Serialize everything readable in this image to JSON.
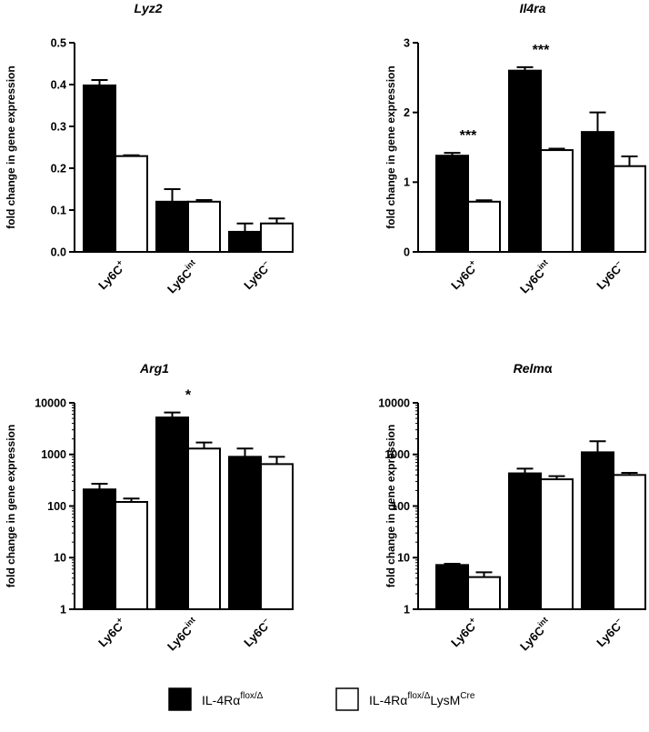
{
  "legend": {
    "items": [
      {
        "base": "IL-4Rα",
        "sup": "flox/Δ",
        "suffix": "",
        "suffix_sup": "",
        "fill": "#000000"
      },
      {
        "base": "IL-4Rα",
        "sup": "flox/Δ",
        "suffix": "LysM",
        "suffix_sup": "Cre",
        "fill": "#ffffff"
      }
    ]
  },
  "colors": {
    "series1": "#000000",
    "series2": "#ffffff",
    "axis": "#000000"
  },
  "chart_data": [
    {
      "type": "bar",
      "title": "Lyz2",
      "ylabel": "fold change in gene expression",
      "ylim": [
        0,
        0.5
      ],
      "scale": "linear",
      "yticks": [
        0.0,
        0.1,
        0.2,
        0.3,
        0.4,
        0.5
      ],
      "ytick_labels": [
        "0.0",
        "0.1",
        "0.2",
        "0.3",
        "0.4",
        "0.5"
      ],
      "categories": [
        {
          "base": "Ly6C",
          "sup": "+"
        },
        {
          "base": "Ly6C",
          "sup": "int"
        },
        {
          "base": "Ly6C",
          "sup": "–"
        }
      ],
      "series": [
        {
          "values": [
            0.398,
            0.12,
            0.048
          ],
          "errors": [
            0.013,
            0.03,
            0.02
          ]
        },
        {
          "values": [
            0.229,
            0.12,
            0.068
          ],
          "errors": [
            0.002,
            0.004,
            0.012
          ]
        }
      ],
      "annotations": [
        "",
        "",
        ""
      ]
    },
    {
      "type": "bar",
      "title": "Il4ra",
      "ylabel": "fold change in gene expression",
      "ylim": [
        0,
        3
      ],
      "scale": "linear",
      "yticks": [
        0,
        1,
        2,
        3
      ],
      "ytick_labels": [
        "0",
        "1",
        "2",
        "3"
      ],
      "categories": [
        {
          "base": "Ly6C",
          "sup": "+"
        },
        {
          "base": "Ly6C",
          "sup": "int"
        },
        {
          "base": "Ly6C",
          "sup": "–"
        }
      ],
      "series": [
        {
          "values": [
            1.38,
            2.6,
            1.72
          ],
          "errors": [
            0.04,
            0.05,
            0.28
          ]
        },
        {
          "values": [
            0.72,
            1.46,
            1.23
          ],
          "errors": [
            0.02,
            0.02,
            0.14
          ]
        }
      ],
      "annotations": [
        "***",
        "***",
        ""
      ]
    },
    {
      "type": "bar",
      "title": "Arg1",
      "ylabel": "fold change in gene expression",
      "ylim": [
        1,
        10000
      ],
      "scale": "log",
      "yticks": [
        1,
        10,
        100,
        1000,
        10000
      ],
      "ytick_labels": [
        "1",
        "10",
        "100",
        "1000",
        "10000"
      ],
      "categories": [
        {
          "base": "Ly6C",
          "sup": "+"
        },
        {
          "base": "Ly6C",
          "sup": "int"
        },
        {
          "base": "Ly6C",
          "sup": "–"
        }
      ],
      "series": [
        {
          "values": [
            210,
            5200,
            900
          ],
          "errors": [
            60,
            1300,
            400
          ]
        },
        {
          "values": [
            120,
            1300,
            650
          ],
          "errors": [
            20,
            400,
            250
          ]
        }
      ],
      "annotations": [
        "",
        "*",
        ""
      ]
    },
    {
      "type": "bar",
      "title": "Relmα",
      "title_italic_part": "Relm",
      "title_plain_part": "α",
      "ylabel": "fold change in gene expression",
      "ylim": [
        1,
        10000
      ],
      "scale": "log",
      "yticks": [
        1,
        10,
        100,
        1000,
        10000
      ],
      "ytick_labels": [
        "1",
        "10",
        "100",
        "1000",
        "10000"
      ],
      "categories": [
        {
          "base": "Ly6C",
          "sup": "+"
        },
        {
          "base": "Ly6C",
          "sup": "int"
        },
        {
          "base": "Ly6C",
          "sup": "–"
        }
      ],
      "series": [
        {
          "values": [
            7.2,
            430,
            1100
          ],
          "errors": [
            0.4,
            100,
            700
          ]
        },
        {
          "values": [
            4.2,
            330,
            400
          ],
          "errors": [
            1.0,
            50,
            40
          ]
        }
      ],
      "annotations": [
        "",
        "",
        ""
      ]
    }
  ]
}
